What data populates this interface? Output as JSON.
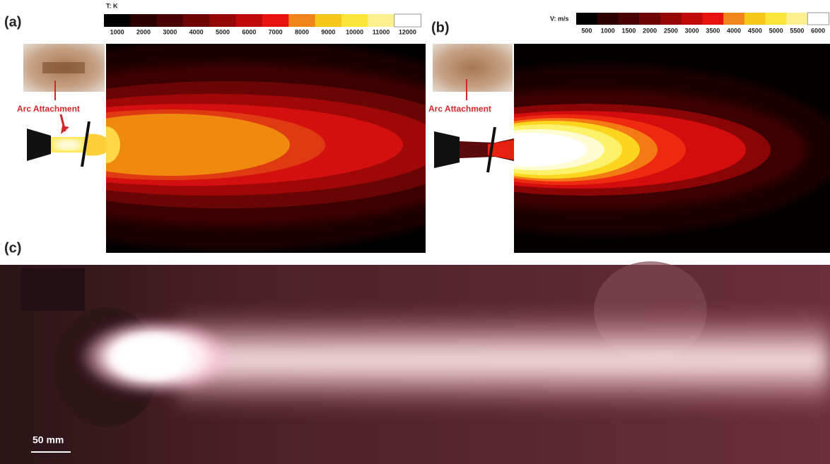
{
  "panels": [
    {
      "label": "(a)",
      "colorbar": {
        "title": "T: K",
        "ticks": [
          1000,
          2000,
          3000,
          4000,
          5000,
          6000,
          7000,
          8000,
          9000,
          10000,
          11000,
          12000
        ]
      },
      "annotation": "Arc Attachment"
    },
    {
      "label": "(b)",
      "colorbar": {
        "title": "V: m/s",
        "ticks": [
          500,
          1000,
          1500,
          2000,
          2500,
          3000,
          3500,
          4000,
          4500,
          5000,
          5500,
          6000
        ]
      },
      "annotation": "Arc Attachment"
    },
    {
      "label": "(c)",
      "scale_bar": "50 mm"
    }
  ]
}
